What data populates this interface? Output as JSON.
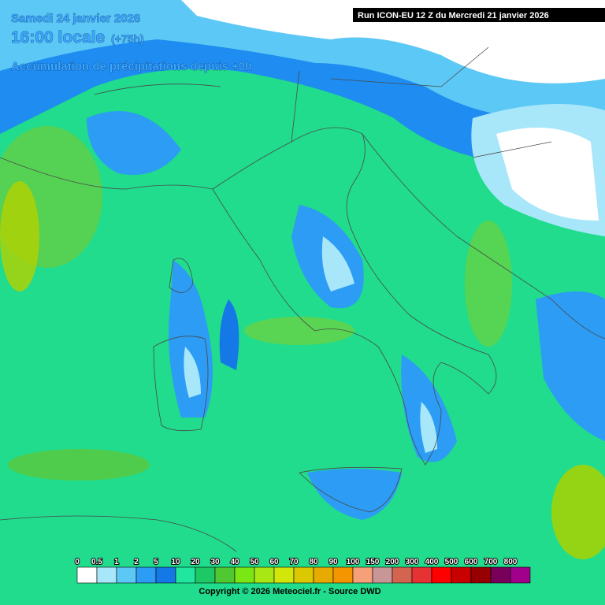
{
  "header": {
    "date": "Samedi 24 janvier 2026",
    "time": "16:00 locale",
    "lead": "(+75h)",
    "subtitle": "Accumulation de précipitations depuis +0h"
  },
  "run": "Run ICON-EU 12 Z du Mercredi 21 janvier 2026",
  "legend": {
    "labels": [
      "0",
      "0.5",
      "1",
      "2",
      "5",
      "10",
      "20",
      "30",
      "40",
      "50",
      "60",
      "70",
      "80",
      "90",
      "100",
      "150",
      "200",
      "300",
      "400",
      "500",
      "600",
      "700",
      "800"
    ],
    "colors": [
      "#ffffff",
      "#a8e6fa",
      "#5cc8f5",
      "#2c9cf5",
      "#1478e6",
      "#20e6a0",
      "#1ec864",
      "#50c832",
      "#7ae614",
      "#a8e614",
      "#d2e60a",
      "#dcc800",
      "#e6aa00",
      "#f59600",
      "#f5a078",
      "#c89696",
      "#d26450",
      "#e63232",
      "#ff0000",
      "#c80000",
      "#960000",
      "#78005a",
      "#a0008c"
    ]
  },
  "copyright": "Copyright © 2026 Meteociel.fr - Source DWD"
}
